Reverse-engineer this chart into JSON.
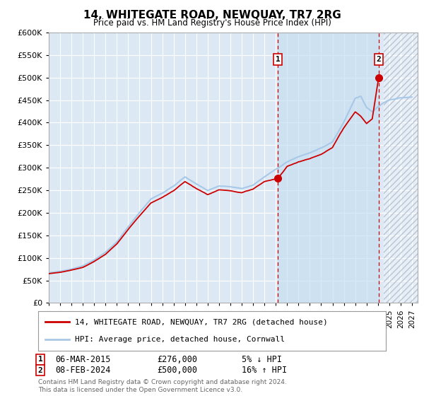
{
  "title": "14, WHITEGATE ROAD, NEWQUAY, TR7 2RG",
  "subtitle": "Price paid vs. HM Land Registry's House Price Index (HPI)",
  "ylim": [
    0,
    600000
  ],
  "yticks": [
    0,
    50000,
    100000,
    150000,
    200000,
    250000,
    300000,
    350000,
    400000,
    450000,
    500000,
    550000,
    600000
  ],
  "ytick_labels": [
    "£0",
    "£50K",
    "£100K",
    "£150K",
    "£200K",
    "£250K",
    "£300K",
    "£350K",
    "£400K",
    "£450K",
    "£500K",
    "£550K",
    "£600K"
  ],
  "xlim_start": 1995.0,
  "xlim_end": 2027.5,
  "hpi_color": "#a8c8e8",
  "price_color": "#cc0000",
  "background_color": "#dce9f5",
  "highlight_color": "#c8dff0",
  "grid_color": "#ffffff",
  "sale1_x": 2015.17,
  "sale1_y": 276000,
  "sale2_x": 2024.09,
  "sale2_y": 500000,
  "sale1_label": "06-MAR-2015",
  "sale1_price": "£276,000",
  "sale1_hpi": "5% ↓ HPI",
  "sale2_label": "08-FEB-2024",
  "sale2_price": "£500,000",
  "sale2_hpi": "16% ↑ HPI",
  "legend_line1": "14, WHITEGATE ROAD, NEWQUAY, TR7 2RG (detached house)",
  "legend_line2": "HPI: Average price, detached house, Cornwall",
  "footnote": "Contains HM Land Registry data © Crown copyright and database right 2024.\nThis data is licensed under the Open Government Licence v3.0.",
  "hatch_start": 2024.5
}
